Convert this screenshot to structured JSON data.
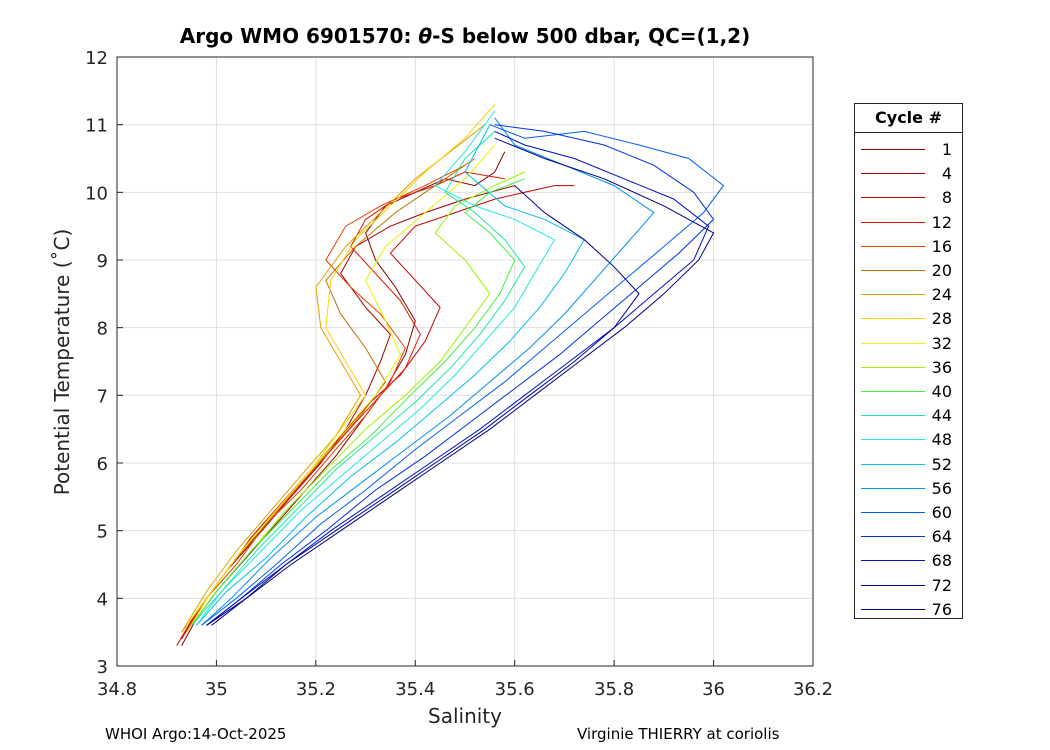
{
  "chart_data": {
    "type": "line",
    "title": "Argo WMO 6901570: θ-S below 500 dbar,  QC=(1,2)",
    "title_parts": {
      "prefix": "Argo WMO 6901570: ",
      "symbol": "θ",
      "suffix": "-S below 500 dbar,  QC=(1,2)"
    },
    "xlabel": "Salinity",
    "ylabel": "Potential Temperature (˚C)",
    "xlim": [
      34.8,
      36.2
    ],
    "ylim": [
      3,
      12
    ],
    "xticks": [
      34.8,
      35,
      35.2,
      35.4,
      35.6,
      35.8,
      36,
      36.2
    ],
    "xtick_labels": [
      "34.8",
      "35",
      "35.2",
      "35.4",
      "35.6",
      "35.8",
      "36",
      "36.2"
    ],
    "yticks": [
      3,
      4,
      5,
      6,
      7,
      8,
      9,
      10,
      11,
      12
    ],
    "ytick_labels": [
      "3",
      "4",
      "5",
      "6",
      "7",
      "8",
      "9",
      "10",
      "11",
      "12"
    ],
    "grid": true,
    "legend_title": "Cycle #",
    "legend_position": "outside-right",
    "legend": [
      {
        "label": "1",
        "color": "#8b0000"
      },
      {
        "label": "4",
        "color": "#a00000"
      },
      {
        "label": "8",
        "color": "#c80000"
      },
      {
        "label": "12",
        "color": "#e01a00"
      },
      {
        "label": "16",
        "color": "#e84000"
      },
      {
        "label": "20",
        "color": "#c07000"
      },
      {
        "label": "24",
        "color": "#e0a000"
      },
      {
        "label": "28",
        "color": "#ffd000"
      },
      {
        "label": "32",
        "color": "#f0f000"
      },
      {
        "label": "36",
        "color": "#a0f000"
      },
      {
        "label": "40",
        "color": "#40f040"
      },
      {
        "label": "44",
        "color": "#20e8a0"
      },
      {
        "label": "48",
        "color": "#20e8e0"
      },
      {
        "label": "52",
        "color": "#00c0f0"
      },
      {
        "label": "56",
        "color": "#0090f0"
      },
      {
        "label": "60",
        "color": "#0060f0"
      },
      {
        "label": "64",
        "color": "#0030e0"
      },
      {
        "label": "68",
        "color": "#0010c0"
      },
      {
        "label": "72",
        "color": "#000090"
      },
      {
        "label": "76",
        "color": "#000080"
      }
    ],
    "series": [
      {
        "name": "1",
        "color": "#8b0000",
        "s": [
          34.93,
          34.96,
          35.0,
          35.06,
          35.12,
          35.18,
          35.24,
          35.3,
          35.34,
          35.38,
          35.4,
          35.36,
          35.32,
          35.3,
          35.34,
          35.4,
          35.46,
          35.52,
          35.56,
          35.58
        ],
        "t": [
          3.3,
          3.7,
          4.1,
          4.6,
          5.1,
          5.6,
          6.1,
          6.7,
          7.1,
          7.6,
          8.1,
          8.6,
          9.0,
          9.4,
          9.8,
          10.0,
          10.2,
          10.1,
          10.3,
          10.6
        ]
      },
      {
        "name": "4",
        "color": "#a00000",
        "s": [
          34.93,
          34.97,
          35.02,
          35.08,
          35.15,
          35.21,
          35.26,
          35.3,
          35.33,
          35.35,
          35.3,
          35.25,
          35.28,
          35.35,
          35.42,
          35.5,
          35.55,
          35.6
        ],
        "t": [
          3.4,
          3.9,
          4.4,
          4.9,
          5.5,
          6.0,
          6.5,
          7.0,
          7.5,
          7.9,
          8.3,
          8.8,
          9.2,
          9.5,
          9.7,
          9.9,
          10.0,
          10.1
        ]
      },
      {
        "name": "8",
        "color": "#c80000",
        "s": [
          34.92,
          34.96,
          35.01,
          35.07,
          35.13,
          35.19,
          35.25,
          35.31,
          35.37,
          35.42,
          35.45,
          35.4,
          35.35,
          35.4,
          35.48,
          35.56,
          35.62,
          35.68,
          35.72
        ],
        "t": [
          3.3,
          3.8,
          4.3,
          4.9,
          5.4,
          5.9,
          6.4,
          6.9,
          7.3,
          7.8,
          8.3,
          8.7,
          9.1,
          9.5,
          9.7,
          9.9,
          10.0,
          10.1,
          10.1
        ]
      },
      {
        "name": "12",
        "color": "#e01a00",
        "s": [
          34.93,
          34.97,
          35.03,
          35.09,
          35.16,
          35.22,
          35.28,
          35.33,
          35.38,
          35.41,
          35.37,
          35.32,
          35.27,
          35.3,
          35.36,
          35.44,
          35.5,
          35.58
        ],
        "t": [
          3.4,
          3.9,
          4.5,
          5.0,
          5.6,
          6.1,
          6.6,
          7.0,
          7.4,
          7.9,
          8.4,
          8.8,
          9.2,
          9.6,
          9.9,
          10.1,
          10.3,
          10.2
        ]
      },
      {
        "name": "16",
        "color": "#e84000",
        "s": [
          34.94,
          34.98,
          35.04,
          35.1,
          35.17,
          35.24,
          35.3,
          35.35,
          35.38,
          35.33,
          35.27,
          35.22,
          35.26,
          35.33,
          35.42,
          35.5
        ],
        "t": [
          3.5,
          4.0,
          4.5,
          5.1,
          5.6,
          6.2,
          6.7,
          7.2,
          7.7,
          8.2,
          8.6,
          9.0,
          9.5,
          9.8,
          10.1,
          10.4
        ]
      },
      {
        "name": "20",
        "color": "#c07000",
        "s": [
          34.93,
          34.98,
          35.03,
          35.1,
          35.17,
          35.23,
          35.29,
          35.34,
          35.3,
          35.25,
          35.22,
          35.28,
          35.36,
          35.44,
          35.52
        ],
        "t": [
          3.5,
          4.0,
          4.5,
          5.1,
          5.7,
          6.2,
          6.7,
          7.2,
          7.7,
          8.2,
          8.7,
          9.2,
          9.7,
          10.1,
          10.5
        ]
      },
      {
        "name": "24",
        "color": "#e0a000",
        "s": [
          34.93,
          34.98,
          35.04,
          35.11,
          35.18,
          35.24,
          35.29,
          35.25,
          35.21,
          35.2,
          35.26,
          35.33,
          35.4,
          35.47,
          35.54
        ],
        "t": [
          3.5,
          4.1,
          4.7,
          5.3,
          5.9,
          6.4,
          7.0,
          7.5,
          8.0,
          8.6,
          9.2,
          9.7,
          10.2,
          10.6,
          11.0
        ]
      },
      {
        "name": "28",
        "color": "#ffd000",
        "s": [
          34.94,
          34.99,
          35.05,
          35.12,
          35.19,
          35.25,
          35.3,
          35.26,
          35.22,
          35.23,
          35.28,
          35.35,
          35.42,
          35.5,
          35.56
        ],
        "t": [
          3.5,
          4.1,
          4.7,
          5.3,
          5.9,
          6.5,
          7.0,
          7.5,
          8.0,
          8.7,
          9.3,
          9.8,
          10.3,
          10.8,
          11.3
        ]
      },
      {
        "name": "32",
        "color": "#f0f000",
        "s": [
          34.94,
          34.99,
          35.05,
          35.12,
          35.19,
          35.26,
          35.32,
          35.37,
          35.34,
          35.3,
          35.34,
          35.42,
          35.5,
          35.56
        ],
        "t": [
          3.6,
          4.1,
          4.7,
          5.3,
          5.9,
          6.5,
          7.0,
          7.6,
          8.1,
          8.7,
          9.2,
          9.7,
          10.2,
          10.7
        ]
      },
      {
        "name": "36",
        "color": "#a0f000",
        "s": [
          34.95,
          35.0,
          35.07,
          35.14,
          35.22,
          35.3,
          35.38,
          35.45,
          35.5,
          35.55,
          35.5,
          35.44,
          35.48,
          35.56,
          35.62
        ],
        "t": [
          3.6,
          4.1,
          4.7,
          5.3,
          5.9,
          6.5,
          7.0,
          7.5,
          8.0,
          8.5,
          9.0,
          9.4,
          9.8,
          10.1,
          10.3
        ]
      },
      {
        "name": "40",
        "color": "#40f040",
        "s": [
          34.95,
          35.0,
          35.07,
          35.15,
          35.23,
          35.31,
          35.39,
          35.46,
          35.52,
          35.57,
          35.6,
          35.55,
          35.5,
          35.55,
          35.62
        ],
        "t": [
          3.6,
          4.1,
          4.7,
          5.3,
          5.9,
          6.4,
          7.0,
          7.5,
          8.0,
          8.5,
          9.0,
          9.4,
          9.7,
          10.0,
          10.2
        ]
      },
      {
        "name": "44",
        "color": "#20e8a0",
        "s": [
          34.95,
          35.01,
          35.08,
          35.16,
          35.24,
          35.32,
          35.4,
          35.47,
          35.53,
          35.58,
          35.62,
          35.58,
          35.52,
          35.46,
          35.5,
          35.56
        ],
        "t": [
          3.6,
          4.1,
          4.7,
          5.3,
          5.9,
          6.4,
          6.9,
          7.4,
          7.9,
          8.4,
          8.9,
          9.3,
          9.7,
          10.0,
          10.5,
          10.9
        ]
      },
      {
        "name": "48",
        "color": "#20e8e0",
        "s": [
          34.96,
          35.01,
          35.09,
          35.17,
          35.25,
          35.33,
          35.41,
          35.48,
          35.54,
          35.6,
          35.64,
          35.68,
          35.6,
          35.52,
          35.44,
          35.5,
          35.56
        ],
        "t": [
          3.6,
          4.1,
          4.7,
          5.3,
          5.8,
          6.3,
          6.8,
          7.3,
          7.8,
          8.3,
          8.8,
          9.3,
          9.6,
          9.8,
          10.1,
          10.6,
          11.2
        ]
      },
      {
        "name": "52",
        "color": "#00c0f0",
        "s": [
          34.96,
          35.02,
          35.1,
          35.18,
          35.27,
          35.36,
          35.44,
          35.52,
          35.59,
          35.65,
          35.7,
          35.74,
          35.66,
          35.58,
          35.5,
          35.55
        ],
        "t": [
          3.6,
          4.1,
          4.6,
          5.2,
          5.8,
          6.3,
          6.8,
          7.3,
          7.8,
          8.3,
          8.8,
          9.3,
          9.6,
          9.8,
          10.3,
          11.0
        ]
      },
      {
        "name": "56",
        "color": "#0090f0",
        "s": [
          34.97,
          35.03,
          35.11,
          35.2,
          35.29,
          35.38,
          35.47,
          35.55,
          35.63,
          35.7,
          35.76,
          35.82,
          35.88,
          35.8,
          35.7,
          35.6,
          35.56
        ],
        "t": [
          3.6,
          4.0,
          4.6,
          5.2,
          5.7,
          6.2,
          6.7,
          7.2,
          7.7,
          8.2,
          8.7,
          9.2,
          9.7,
          10.1,
          10.4,
          10.7,
          11.1
        ]
      },
      {
        "name": "60",
        "color": "#0060f0",
        "s": [
          34.97,
          35.04,
          35.12,
          35.21,
          35.3,
          35.4,
          35.49,
          35.58,
          35.66,
          35.74,
          35.82,
          35.9,
          35.98,
          36.02,
          35.95,
          35.85,
          35.74,
          35.62,
          35.55
        ],
        "t": [
          3.6,
          4.0,
          4.5,
          5.1,
          5.6,
          6.2,
          6.7,
          7.2,
          7.7,
          8.2,
          8.7,
          9.2,
          9.7,
          10.1,
          10.5,
          10.7,
          10.9,
          10.8,
          11.0
        ]
      },
      {
        "name": "64",
        "color": "#0030e0",
        "s": [
          34.98,
          35.05,
          35.13,
          35.22,
          35.32,
          35.42,
          35.51,
          35.6,
          35.69,
          35.77,
          35.85,
          35.93,
          36.0,
          35.96,
          35.88,
          35.78,
          35.66,
          35.56
        ],
        "t": [
          3.6,
          4.0,
          4.5,
          5.0,
          5.6,
          6.1,
          6.6,
          7.1,
          7.6,
          8.1,
          8.6,
          9.1,
          9.6,
          10.0,
          10.4,
          10.7,
          10.9,
          11.0
        ]
      },
      {
        "name": "68",
        "color": "#0010c0",
        "s": [
          34.98,
          35.05,
          35.14,
          35.23,
          35.33,
          35.43,
          35.53,
          35.62,
          35.71,
          35.8,
          35.88,
          35.96,
          35.99,
          35.92,
          35.82,
          35.72,
          35.62,
          35.56
        ],
        "t": [
          3.6,
          4.0,
          4.5,
          5.0,
          5.5,
          6.0,
          6.5,
          7.0,
          7.5,
          8.0,
          8.5,
          9.0,
          9.5,
          9.9,
          10.2,
          10.5,
          10.7,
          10.9
        ]
      },
      {
        "name": "72",
        "color": "#000090",
        "s": [
          34.98,
          35.06,
          35.14,
          35.24,
          35.34,
          35.44,
          35.54,
          35.63,
          35.72,
          35.8,
          35.85,
          35.8,
          35.74,
          35.66,
          35.6
        ],
        "t": [
          3.6,
          4.0,
          4.5,
          5.0,
          5.5,
          6.0,
          6.5,
          7.0,
          7.5,
          8.0,
          8.5,
          8.9,
          9.3,
          9.7,
          10.1
        ]
      },
      {
        "name": "76",
        "color": "#000080",
        "s": [
          34.99,
          35.06,
          35.15,
          35.25,
          35.35,
          35.45,
          35.55,
          35.64,
          35.73,
          35.82,
          35.9,
          35.97,
          36.0,
          35.9,
          35.78,
          35.66,
          35.56
        ],
        "t": [
          3.6,
          4.0,
          4.5,
          5.0,
          5.5,
          6.0,
          6.5,
          7.0,
          7.5,
          8.0,
          8.5,
          9.0,
          9.4,
          9.8,
          10.2,
          10.5,
          10.8
        ]
      }
    ]
  },
  "footer": {
    "left": "WHOI Argo:14-Oct-2025",
    "right": "Virginie THIERRY at coriolis"
  }
}
